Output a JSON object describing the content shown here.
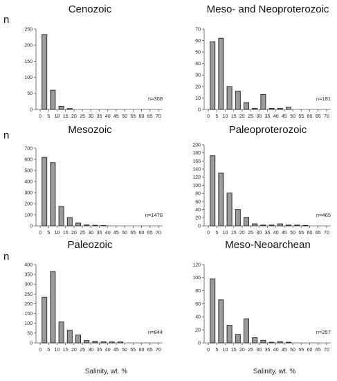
{
  "n_label": "n",
  "chart_data": [
    {
      "type": "bar",
      "title": "Cenozoic",
      "annotation": "n=308",
      "ylim": [
        0,
        250
      ],
      "yticks": [
        0,
        50,
        100,
        150,
        200,
        250
      ],
      "xticks": [
        0,
        5,
        10,
        15,
        20,
        25,
        30,
        35,
        40,
        45,
        50,
        55,
        60,
        65,
        70
      ],
      "x": [
        2.5,
        7.5,
        12.5,
        17.5
      ],
      "values": [
        233,
        60,
        10,
        3
      ]
    },
    {
      "type": "bar",
      "title": "Meso- and Neoproterozoic",
      "annotation": "n=181",
      "ylim": [
        0,
        70
      ],
      "yticks": [
        0,
        10,
        20,
        30,
        40,
        50,
        60,
        70
      ],
      "xticks": [
        0,
        5,
        10,
        15,
        20,
        25,
        30,
        35,
        40,
        45,
        50,
        55,
        60,
        65,
        70
      ],
      "x": [
        2.5,
        7.5,
        12.5,
        17.5,
        22.5,
        27.5,
        32.5,
        37.5,
        42.5,
        47.5
      ],
      "values": [
        59,
        62,
        20,
        16,
        6,
        1,
        13,
        1,
        1,
        2
      ]
    },
    {
      "type": "bar",
      "title": "Mesozoic",
      "annotation": "n=1478",
      "ylim": [
        0,
        700
      ],
      "yticks": [
        0,
        100,
        200,
        300,
        400,
        500,
        600,
        700
      ],
      "xticks": [
        0,
        5,
        10,
        15,
        20,
        25,
        30,
        35,
        40,
        45,
        50,
        55,
        60,
        65,
        70
      ],
      "x": [
        2.5,
        7.5,
        12.5,
        17.5,
        22.5,
        27.5,
        32.5,
        37.5
      ],
      "values": [
        618,
        570,
        175,
        75,
        25,
        8,
        5,
        3
      ]
    },
    {
      "type": "bar",
      "title": "Paleoproterozoic",
      "annotation": "n=465",
      "ylim": [
        0,
        200
      ],
      "yticks": [
        0,
        20,
        40,
        60,
        80,
        100,
        120,
        140,
        160,
        180,
        200
      ],
      "xticks": [
        0,
        5,
        10,
        15,
        20,
        25,
        30,
        35,
        40,
        45,
        50,
        55,
        60,
        65,
        70
      ],
      "x": [
        2.5,
        7.5,
        12.5,
        17.5,
        22.5,
        27.5,
        32.5,
        37.5,
        42.5,
        47.5,
        52.5,
        57.5
      ],
      "values": [
        173,
        130,
        81,
        40,
        21,
        5,
        2,
        2,
        5,
        2,
        2,
        1
      ]
    },
    {
      "type": "bar",
      "title": "Paleozoic",
      "annotation": "n=844",
      "ylim": [
        0,
        400
      ],
      "yticks": [
        0,
        50,
        100,
        150,
        200,
        250,
        300,
        350,
        400
      ],
      "xticks": [
        0,
        5,
        10,
        15,
        20,
        25,
        30,
        35,
        40,
        45,
        50,
        55,
        60,
        65,
        70
      ],
      "x": [
        2.5,
        7.5,
        12.5,
        17.5,
        22.5,
        27.5,
        32.5,
        37.5,
        42.5,
        47.5
      ],
      "values": [
        233,
        365,
        107,
        65,
        40,
        12,
        8,
        6,
        5,
        5
      ],
      "xlabel": "Salinity, wt. %"
    },
    {
      "type": "bar",
      "title": "Meso-Neoarchean",
      "annotation": "n=257",
      "ylim": [
        0,
        120
      ],
      "yticks": [
        0,
        20,
        40,
        60,
        80,
        100,
        120
      ],
      "xticks": [
        0,
        5,
        10,
        15,
        20,
        25,
        30,
        35,
        40,
        45,
        50,
        55,
        60,
        65,
        70
      ],
      "x": [
        2.5,
        7.5,
        12.5,
        17.5,
        22.5,
        27.5,
        32.5,
        37.5,
        42.5,
        47.5
      ],
      "values": [
        98,
        66,
        27,
        13,
        37,
        8,
        4,
        1,
        2,
        1
      ],
      "xlabel": "Salinity, wt. %"
    }
  ],
  "colors": {
    "bar_fill": "#9a9a9a",
    "bar_stroke": "#222222",
    "axis": "#555555"
  }
}
